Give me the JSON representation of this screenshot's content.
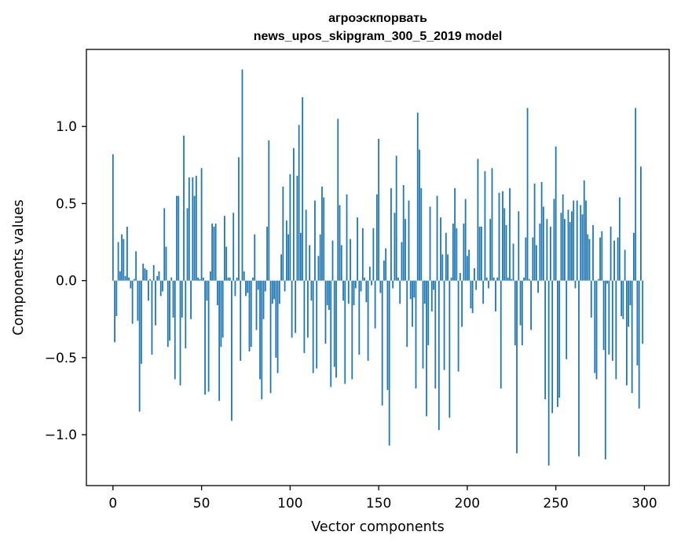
{
  "chart_data": {
    "type": "bar",
    "title": "агроэскпорвать",
    "subtitle": "news_upos_skipgram_300_5_2019 model",
    "xlabel": "Vector components",
    "ylabel": "Components values",
    "xlim": [
      -15,
      314
    ],
    "ylim": [
      -1.33,
      1.5
    ],
    "grid": false,
    "legend": "none",
    "bar_color": "#1f77b4",
    "xticks": [
      0,
      50,
      100,
      150,
      200,
      250,
      300
    ],
    "xtick_labels": [
      "0",
      "50",
      "100",
      "150",
      "200",
      "250",
      "300"
    ],
    "yticks": [
      -1.0,
      -0.5,
      0.0,
      0.5,
      1.0
    ],
    "ytick_labels": [
      "−1.0",
      "−0.5",
      "0.0",
      "0.5",
      "1.0"
    ],
    "values": [
      0.82,
      -0.4,
      -0.23,
      0.25,
      0.06,
      0.3,
      0.27,
      0.03,
      0.35,
      0.02,
      -0.05,
      -0.28,
      0.01,
      0.19,
      -0.26,
      -0.85,
      -0.54,
      0.11,
      0.08,
      0.07,
      -0.13,
      0.01,
      -0.48,
      0.1,
      -0.29,
      0.03,
      0.06,
      -0.1,
      -0.07,
      0.47,
      0.22,
      -0.43,
      -0.39,
      0.02,
      -0.24,
      -0.64,
      0.55,
      0.55,
      -0.68,
      -0.24,
      0.94,
      -0.44,
      0.47,
      0.67,
      -0.25,
      0.67,
      0.55,
      0.68,
      0.02,
      0.01,
      0.73,
      0.02,
      -0.74,
      -0.13,
      -0.72,
      0.06,
      0.37,
      0.35,
      0.37,
      -0.16,
      -0.78,
      -0.43,
      -0.37,
      0.42,
      0.22,
      0.02,
      0.02,
      -0.91,
      0.44,
      -0.1,
      0.02,
      0.8,
      -0.52,
      1.37,
      0.06,
      -0.1,
      -0.08,
      -0.46,
      -0.43,
      0.02,
      0.3,
      -0.32,
      -0.06,
      -0.64,
      -0.77,
      -0.25,
      -0.07,
      0.35,
      0.91,
      -0.73,
      -0.15,
      -0.12,
      -0.5,
      -0.6,
      -0.15,
      0.17,
      0.61,
      -0.07,
      0.39,
      0.3,
      0.69,
      -0.37,
      0.86,
      -0.34,
      0.68,
      1.01,
      0.31,
      1.19,
      -0.47,
      0.46,
      -0.37,
      0.23,
      -0.13,
      -0.6,
      0.52,
      -0.57,
      0.16,
      0.3,
      0.61,
      0.54,
      -0.41,
      -0.16,
      -0.19,
      -0.69,
      0.26,
      -0.56,
      -0.63,
      1.05,
      0.49,
      0.23,
      -0.13,
      -0.67,
      0.56,
      -0.15,
      0.27,
      -0.64,
      -0.16,
      -0.05,
      0.41,
      -0.48,
      -0.07,
      0.34,
      0.02,
      -0.14,
      -0.52,
      0.09,
      -0.03,
      0.34,
      -0.31,
      0.56,
      0.92,
      -0.08,
      -0.81,
      0.13,
      0.21,
      -0.71,
      -1.07,
      0.6,
      -0.05,
      0.44,
      0.81,
      0.02,
      -0.15,
      0.25,
      0.62,
      0.4,
      -0.43,
      0.52,
      -0.12,
      -0.3,
      -0.11,
      -0.7,
      1.09,
      0.85,
      0.6,
      -0.57,
      -0.15,
      -0.88,
      -0.42,
      0.48,
      -0.2,
      -0.06,
      -0.7,
      0.55,
      -0.97,
      0.41,
      0.17,
      -0.58,
      0.31,
      0.17,
      -0.89,
      0.02,
      0.37,
      0.6,
      0.34,
      -0.59,
      0.05,
      -0.3,
      0.37,
      0.53,
      0.16,
      0.2,
      -0.18,
      -0.21,
      0.08,
      -0.06,
      0.79,
      0.35,
      0.35,
      -0.15,
      0.71,
      0.02,
      -0.05,
      0.4,
      0.73,
      0.02,
      -0.2,
      0.02,
      0.57,
      -0.7,
      0.58,
      0.47,
      0.36,
      0.02,
      0.6,
      0.01,
      0.24,
      -0.42,
      -1.12,
      0.45,
      -0.29,
      -0.42,
      0.02,
      0.28,
      1.12,
      0.01,
      -0.32,
      0.28,
      0.63,
      0.23,
      -0.08,
      0.37,
      0.64,
      0.48,
      -0.77,
      0.4,
      -1.2,
      0.35,
      -0.86,
      0.53,
      0.87,
      -0.82,
      -0.76,
      0.44,
      0.56,
      0.4,
      -0.51,
      0.46,
      0.38,
      0.45,
      0.52,
      -0.05,
      0.52,
      -1.14,
      0.49,
      0.43,
      0.65,
      0.52,
      0.3,
      0.27,
      -0.24,
      0.36,
      -0.6,
      -0.64,
      0.01,
      0.28,
      0.32,
      -0.45,
      -1.16,
      -0.02,
      -0.48,
      0.35,
      -0.52,
      0.26,
      -0.64,
      0.28,
      0.54,
      -0.23,
      -0.25,
      0.2,
      -0.68,
      -0.3,
      -0.16,
      -0.73,
      0.31,
      1.12,
      -0.55,
      -0.83,
      0.74,
      -0.41
    ]
  }
}
